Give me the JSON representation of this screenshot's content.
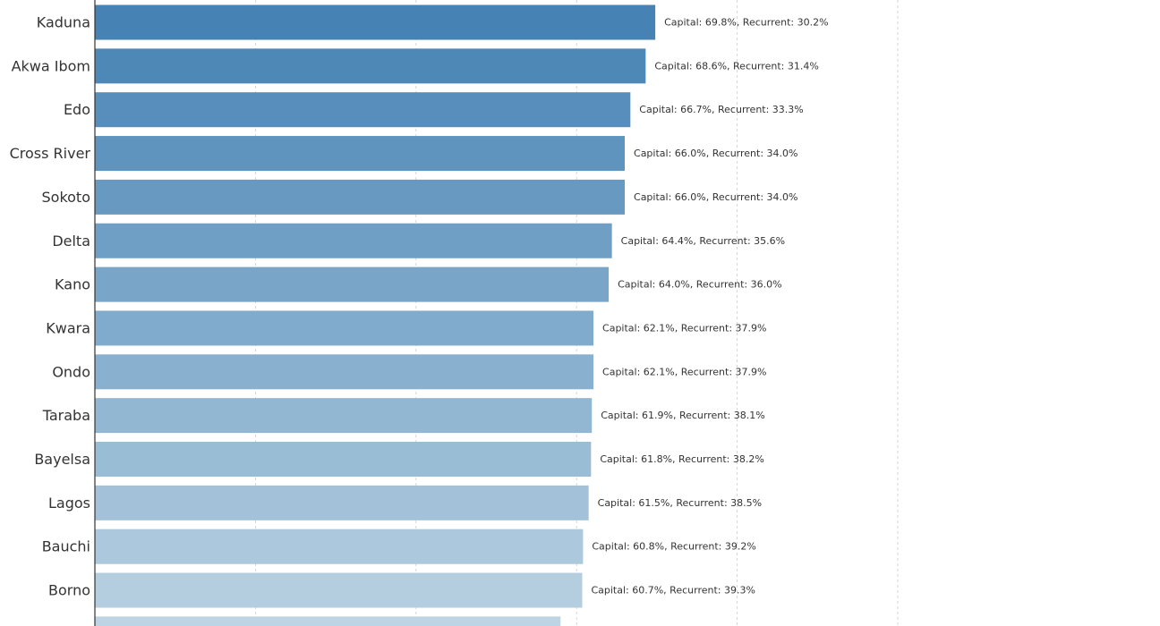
{
  "chart_data": {
    "type": "bar",
    "orientation": "horizontal",
    "title": "",
    "xlabel": "",
    "ylabel": "",
    "grid": "vertical dashed",
    "xlim": [
      0,
      100
    ],
    "x_gridlines": [
      0,
      20,
      40,
      60,
      80,
      100
    ],
    "colors": {
      "start": "#4682b4",
      "end": "#bcd4e3",
      "grid": "#cccccc",
      "axis": "#333333"
    },
    "categories": [
      "Kaduna",
      "Akwa Ibom",
      "Edo",
      "Cross River",
      "Sokoto",
      "Delta",
      "Kano",
      "Kwara",
      "Ondo",
      "Taraba",
      "Bayelsa",
      "Lagos",
      "Bauchi",
      "Borno",
      ""
    ],
    "values": [
      69.8,
      68.6,
      66.7,
      66.0,
      66.0,
      64.4,
      64.0,
      62.1,
      62.1,
      61.9,
      61.8,
      61.5,
      60.8,
      60.7,
      58.0
    ],
    "labels": [
      "Capital: 69.8%, Recurrent: 30.2%",
      "Capital: 68.6%, Recurrent: 31.4%",
      "Capital: 66.7%, Recurrent: 33.3%",
      "Capital: 66.0%, Recurrent: 34.0%",
      "Capital: 66.0%, Recurrent: 34.0%",
      "Capital: 64.4%, Recurrent: 35.6%",
      "Capital: 64.0%, Recurrent: 36.0%",
      "Capital: 62.1%, Recurrent: 37.9%",
      "Capital: 62.1%, Recurrent: 37.9%",
      "Capital: 61.9%, Recurrent: 38.1%",
      "Capital: 61.8%, Recurrent: 38.2%",
      "Capital: 61.5%, Recurrent: 38.5%",
      "Capital: 60.8%, Recurrent: 39.2%",
      "Capital: 60.7%, Recurrent: 39.3%",
      ""
    ]
  }
}
